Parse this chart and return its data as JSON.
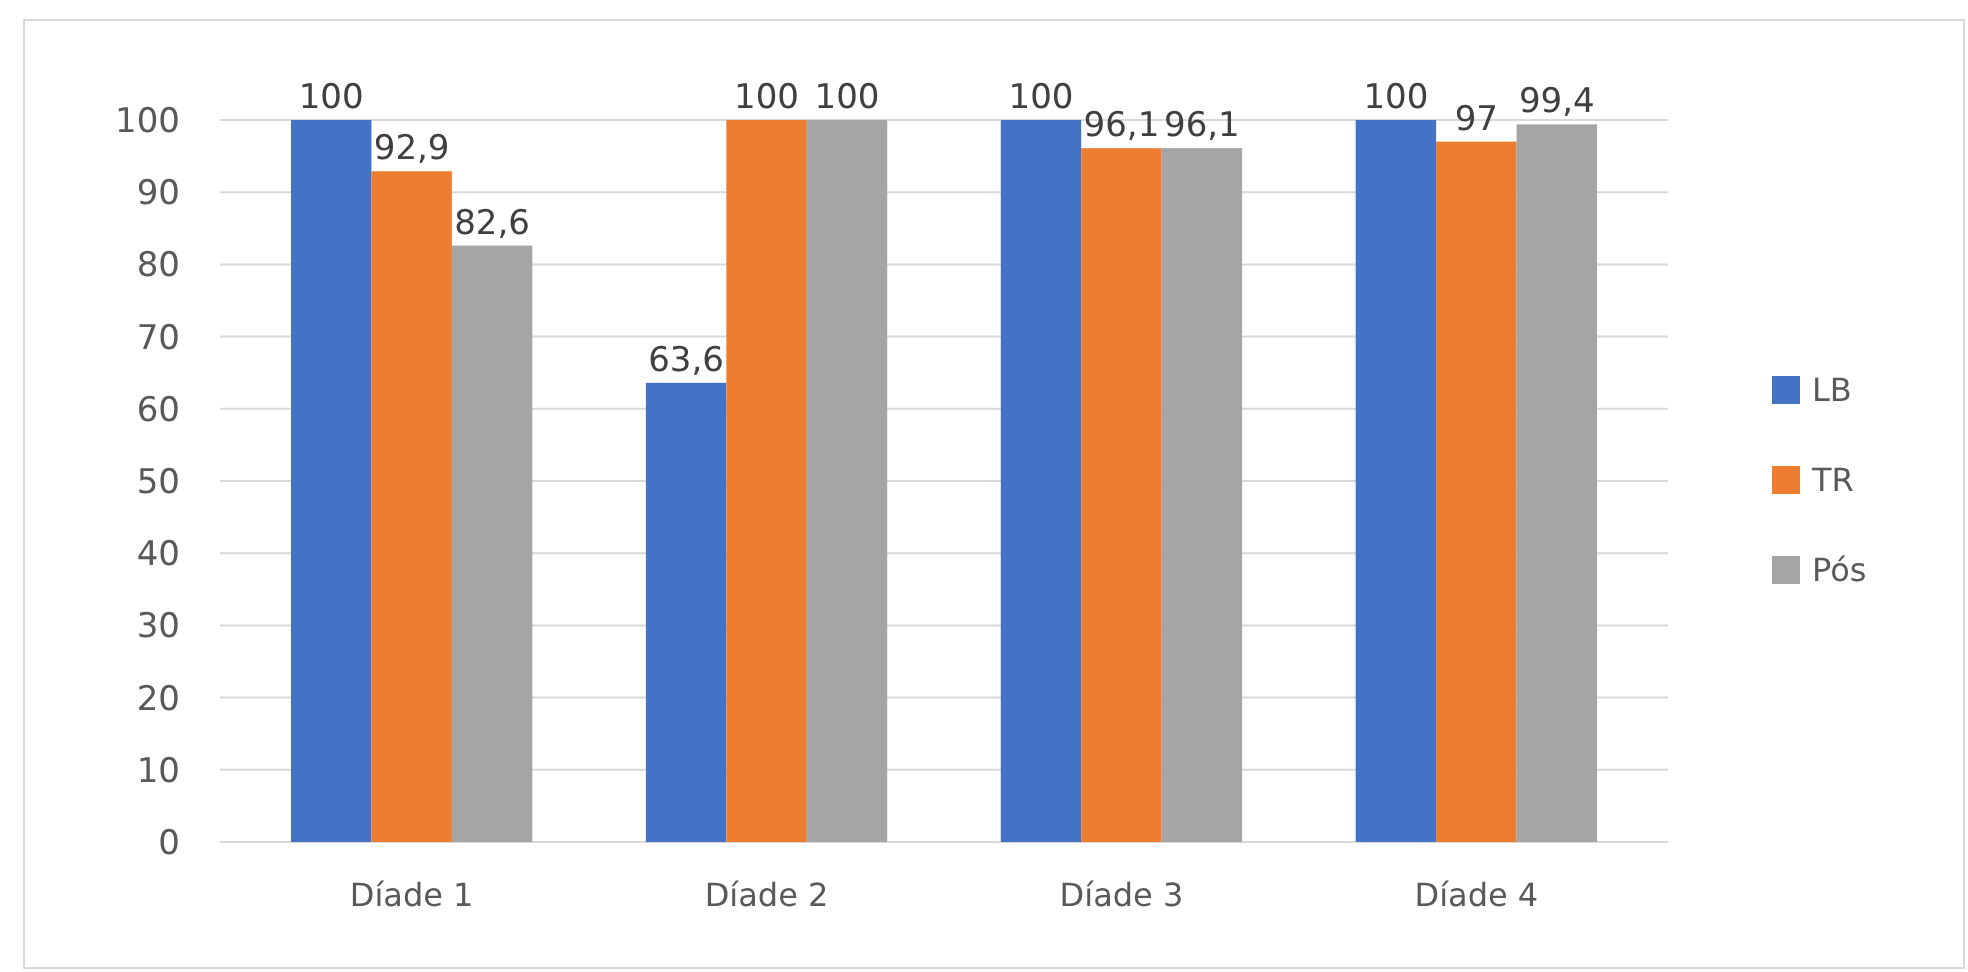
{
  "chart_data": {
    "type": "bar",
    "categories": [
      "Díade 1",
      "Díade 2",
      "Díade 3",
      "Díade 4"
    ],
    "series": [
      {
        "name": "LB",
        "color": "#4472c4",
        "values": [
          100,
          63.6,
          100,
          100
        ],
        "value_labels": [
          "100",
          "63,6",
          "100",
          "100"
        ]
      },
      {
        "name": "TR",
        "color": "#ed7d31",
        "values": [
          92.9,
          100,
          96.1,
          97
        ],
        "value_labels": [
          "92,9",
          "100",
          "96,1",
          "97"
        ]
      },
      {
        "name": "Pós",
        "color": "#a5a5a5",
        "values": [
          82.6,
          100,
          96.1,
          99.4
        ],
        "value_labels": [
          "82,6",
          "100",
          "96,1",
          "99,4"
        ]
      }
    ],
    "ylim": [
      0,
      100
    ],
    "yticks": [
      0,
      10,
      20,
      30,
      40,
      50,
      60,
      70,
      80,
      90,
      100
    ],
    "grid": "y",
    "legend": "right"
  }
}
